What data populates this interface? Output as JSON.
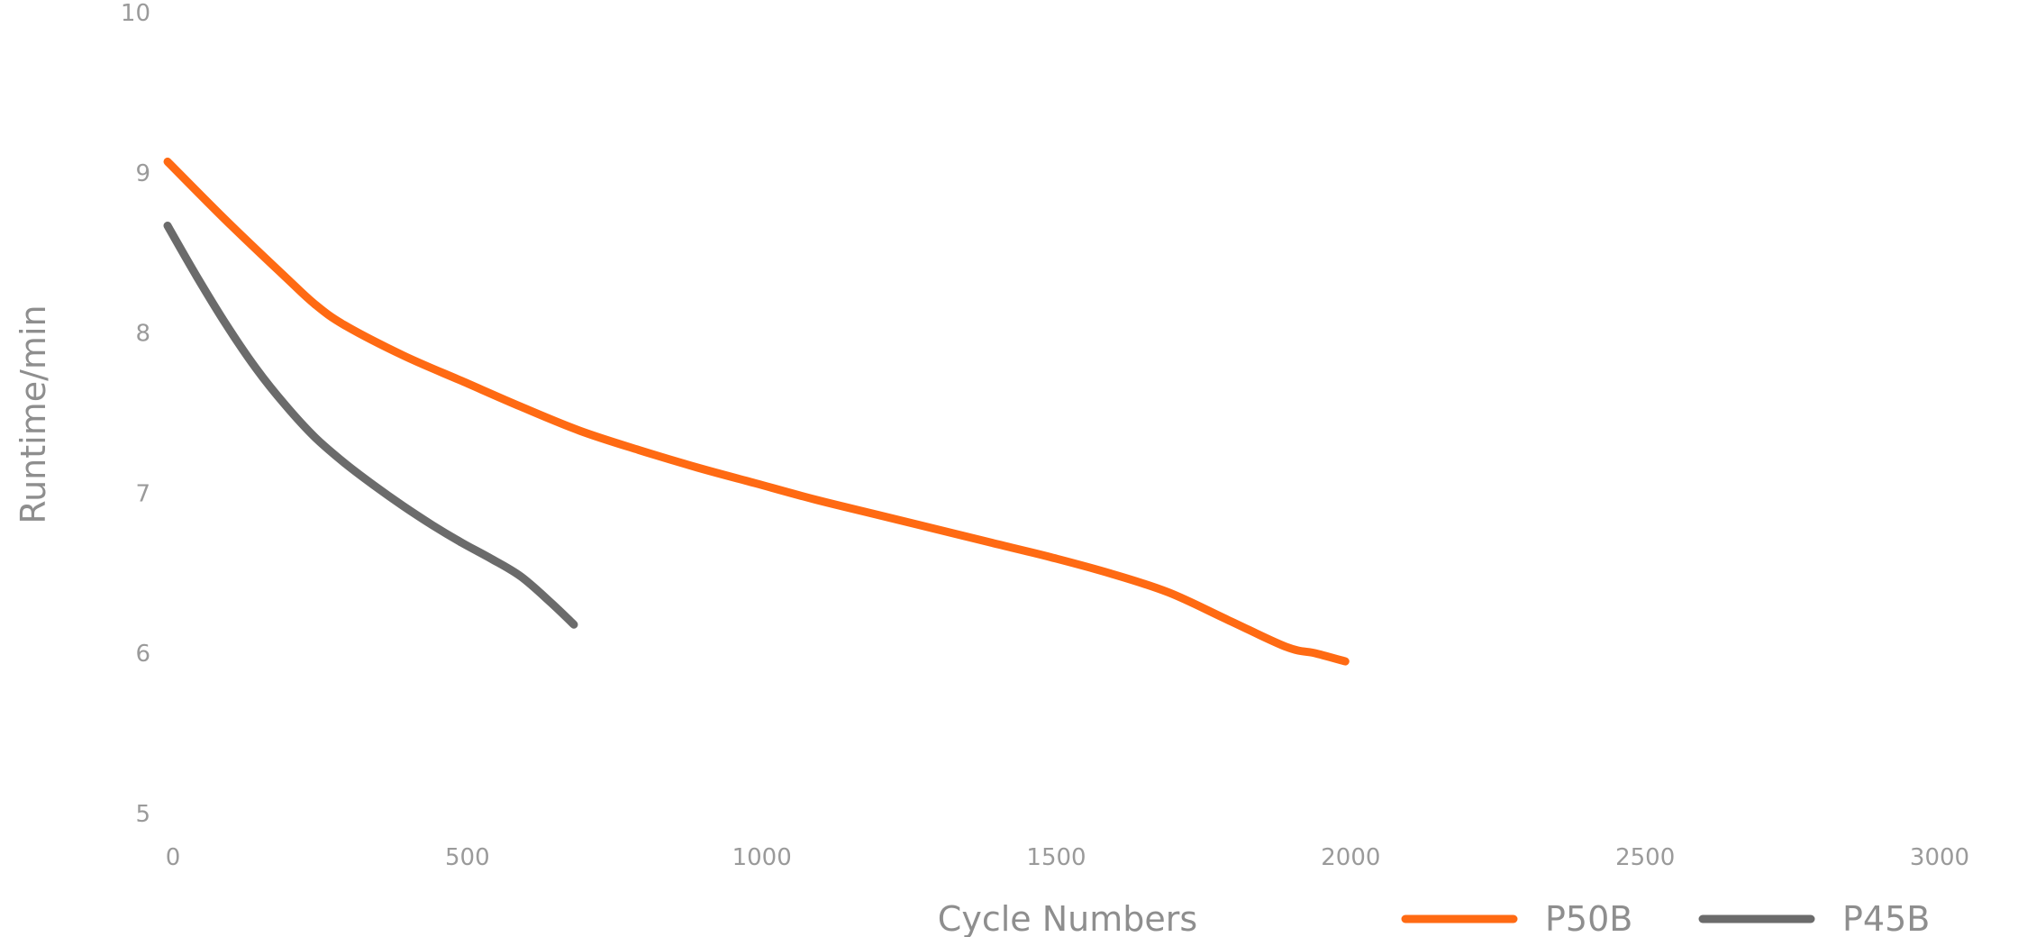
{
  "chart_data": {
    "type": "line",
    "title": "",
    "xlabel": "Cycle Numbers",
    "ylabel": "Runtime/min",
    "xlim": [
      0,
      3000
    ],
    "ylim": [
      5,
      10
    ],
    "xticks": [
      0,
      500,
      1000,
      1500,
      2000,
      2500,
      3000
    ],
    "yticks": [
      5,
      6,
      7,
      8,
      9,
      10
    ],
    "grid": false,
    "legend_position": "bottom-right",
    "series": [
      {
        "name": "P50B",
        "color": "#ff6a13",
        "points": [
          [
            0,
            9.07
          ],
          [
            100,
            8.7
          ],
          [
            200,
            8.35
          ],
          [
            250,
            8.18
          ],
          [
            300,
            8.05
          ],
          [
            400,
            7.86
          ],
          [
            500,
            7.7
          ],
          [
            600,
            7.54
          ],
          [
            700,
            7.39
          ],
          [
            800,
            7.27
          ],
          [
            900,
            7.16
          ],
          [
            1000,
            7.06
          ],
          [
            1100,
            6.96
          ],
          [
            1200,
            6.87
          ],
          [
            1300,
            6.78
          ],
          [
            1400,
            6.69
          ],
          [
            1500,
            6.6
          ],
          [
            1600,
            6.5
          ],
          [
            1700,
            6.38
          ],
          [
            1800,
            6.21
          ],
          [
            1900,
            6.04
          ],
          [
            1950,
            6.0
          ],
          [
            2000,
            5.95
          ]
        ]
      },
      {
        "name": "P45B",
        "color": "#6b6b6b",
        "points": [
          [
            0,
            8.67
          ],
          [
            50,
            8.35
          ],
          [
            100,
            8.05
          ],
          [
            150,
            7.78
          ],
          [
            200,
            7.55
          ],
          [
            250,
            7.35
          ],
          [
            300,
            7.19
          ],
          [
            350,
            7.05
          ],
          [
            400,
            6.92
          ],
          [
            450,
            6.8
          ],
          [
            500,
            6.69
          ],
          [
            550,
            6.59
          ],
          [
            600,
            6.48
          ],
          [
            650,
            6.32
          ],
          [
            690,
            6.18
          ]
        ]
      }
    ]
  }
}
